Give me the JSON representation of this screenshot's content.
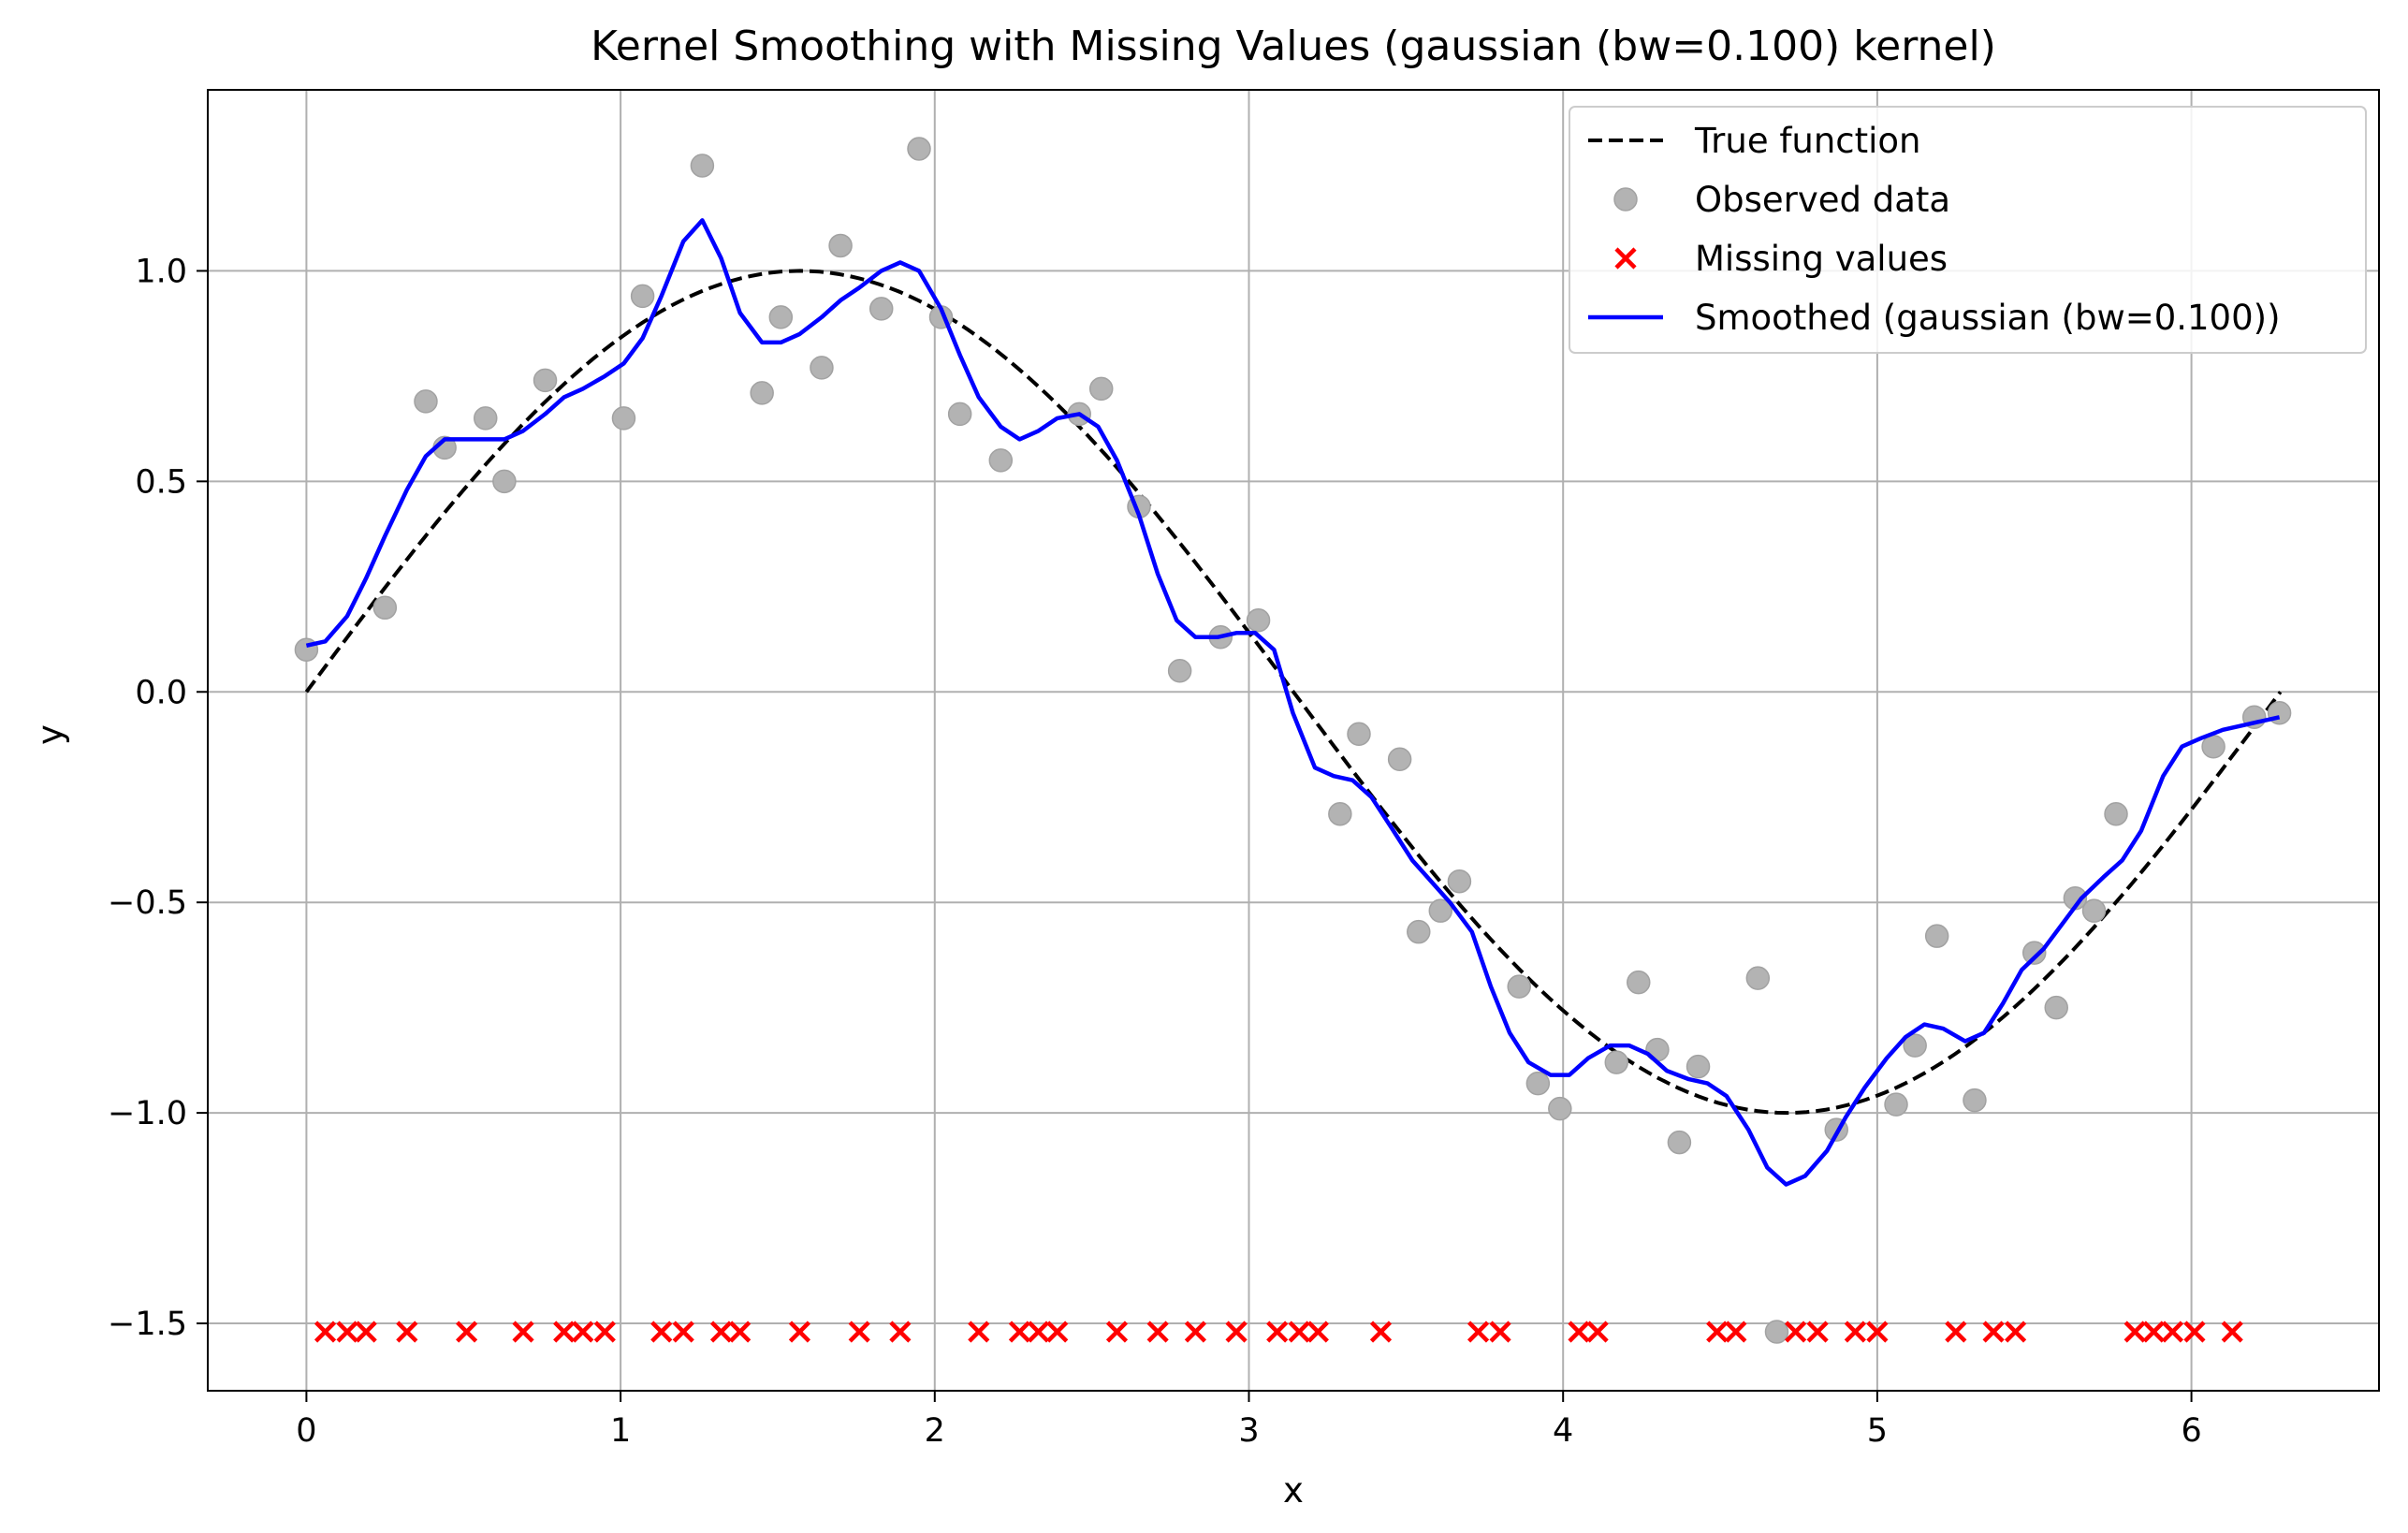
{
  "chart_data": {
    "type": "scatter",
    "title": "Kernel Smoothing with Missing Values (gaussian (bw=0.100) kernel)",
    "xlabel": "x",
    "ylabel": "y",
    "xlim": [
      -0.314,
      6.597
    ],
    "ylim": [
      -1.66,
      1.43
    ],
    "xticks": [
      0,
      1,
      2,
      3,
      4,
      5,
      6
    ],
    "yticks": [
      -1.5,
      -1.0,
      -0.5,
      0.0,
      0.5,
      1.0
    ],
    "xtick_labels": [
      "0",
      "1",
      "2",
      "3",
      "4",
      "5",
      "6"
    ],
    "ytick_labels": [
      "−1.5",
      "−1.0",
      "−0.5",
      "0.0",
      "0.5",
      "1.0"
    ],
    "grid": true,
    "legend_position": "top-right",
    "colors": {
      "true_function": "#000000",
      "observed": "#b3b3b3",
      "missing": "#ff0000",
      "smoothed": "#0000ff"
    },
    "series": [
      {
        "name": "True function",
        "type": "line",
        "style": "dashed",
        "function": "sin",
        "x_range": [
          0,
          6.2832
        ]
      },
      {
        "name": "Observed data",
        "type": "scatter",
        "points": [
          [
            0.0,
            0.1
          ],
          [
            0.25,
            0.2
          ],
          [
            0.38,
            0.69
          ],
          [
            0.44,
            0.58
          ],
          [
            0.57,
            0.65
          ],
          [
            0.63,
            0.5
          ],
          [
            0.76,
            0.74
          ],
          [
            1.01,
            0.65
          ],
          [
            1.07,
            0.94
          ],
          [
            1.26,
            1.25
          ],
          [
            1.45,
            0.71
          ],
          [
            1.51,
            0.89
          ],
          [
            1.64,
            0.77
          ],
          [
            1.7,
            1.06
          ],
          [
            1.83,
            0.91
          ],
          [
            1.95,
            1.29
          ],
          [
            2.02,
            0.89
          ],
          [
            2.08,
            0.66
          ],
          [
            2.21,
            0.55
          ],
          [
            2.46,
            0.66
          ],
          [
            2.53,
            0.72
          ],
          [
            2.65,
            0.44
          ],
          [
            2.78,
            0.05
          ],
          [
            2.91,
            0.13
          ],
          [
            3.03,
            0.17
          ],
          [
            3.29,
            -0.29
          ],
          [
            3.35,
            -0.1
          ],
          [
            3.48,
            -0.16
          ],
          [
            3.54,
            -0.57
          ],
          [
            3.61,
            -0.52
          ],
          [
            3.67,
            -0.45
          ],
          [
            3.86,
            -0.7
          ],
          [
            3.92,
            -0.93
          ],
          [
            3.99,
            -0.99
          ],
          [
            4.17,
            -0.88
          ],
          [
            4.24,
            -0.69
          ],
          [
            4.3,
            -0.85
          ],
          [
            4.37,
            -1.07
          ],
          [
            4.43,
            -0.89
          ],
          [
            4.62,
            -0.68
          ],
          [
            4.68,
            -1.52
          ],
          [
            4.87,
            -1.04
          ],
          [
            5.06,
            -0.98
          ],
          [
            5.12,
            -0.84
          ],
          [
            5.19,
            -0.58
          ],
          [
            5.31,
            -0.97
          ],
          [
            5.5,
            -0.62
          ],
          [
            5.57,
            -0.75
          ],
          [
            5.63,
            -0.49
          ],
          [
            5.69,
            -0.52
          ],
          [
            5.76,
            -0.29
          ],
          [
            6.07,
            -0.13
          ],
          [
            6.2,
            -0.06
          ],
          [
            6.28,
            -0.05
          ]
        ]
      },
      {
        "name": "Missing values",
        "type": "scatter",
        "marker": "x",
        "y": -1.52,
        "x": [
          0.06,
          0.13,
          0.19,
          0.32,
          0.51,
          0.69,
          0.82,
          0.88,
          0.95,
          1.13,
          1.2,
          1.32,
          1.38,
          1.57,
          1.76,
          1.89,
          2.14,
          2.27,
          2.33,
          2.39,
          2.58,
          2.71,
          2.83,
          2.96,
          3.09,
          3.16,
          3.22,
          3.42,
          3.73,
          3.8,
          4.05,
          4.11,
          4.49,
          4.55,
          4.74,
          4.81,
          4.93,
          5.0,
          5.25,
          5.37,
          5.44,
          5.82,
          5.88,
          5.94,
          6.01,
          6.13
        ]
      },
      {
        "name": "Smoothed (gaussian (bw=0.100))",
        "type": "line",
        "points": [
          [
            0.0,
            0.11
          ],
          [
            0.06,
            0.12
          ],
          [
            0.13,
            0.18
          ],
          [
            0.19,
            0.27
          ],
          [
            0.25,
            0.37
          ],
          [
            0.32,
            0.48
          ],
          [
            0.38,
            0.56
          ],
          [
            0.44,
            0.6
          ],
          [
            0.51,
            0.6
          ],
          [
            0.57,
            0.6
          ],
          [
            0.63,
            0.6
          ],
          [
            0.69,
            0.62
          ],
          [
            0.76,
            0.66
          ],
          [
            0.82,
            0.7
          ],
          [
            0.88,
            0.72
          ],
          [
            0.95,
            0.75
          ],
          [
            1.01,
            0.78
          ],
          [
            1.07,
            0.84
          ],
          [
            1.13,
            0.94
          ],
          [
            1.2,
            1.07
          ],
          [
            1.26,
            1.12
          ],
          [
            1.32,
            1.03
          ],
          [
            1.38,
            0.9
          ],
          [
            1.45,
            0.83
          ],
          [
            1.51,
            0.83
          ],
          [
            1.57,
            0.85
          ],
          [
            1.64,
            0.89
          ],
          [
            1.7,
            0.93
          ],
          [
            1.76,
            0.96
          ],
          [
            1.83,
            1.0
          ],
          [
            1.89,
            1.02
          ],
          [
            1.95,
            1.0
          ],
          [
            2.02,
            0.91
          ],
          [
            2.08,
            0.8
          ],
          [
            2.14,
            0.7
          ],
          [
            2.21,
            0.63
          ],
          [
            2.27,
            0.6
          ],
          [
            2.33,
            0.62
          ],
          [
            2.39,
            0.65
          ],
          [
            2.46,
            0.66
          ],
          [
            2.52,
            0.63
          ],
          [
            2.58,
            0.55
          ],
          [
            2.65,
            0.42
          ],
          [
            2.71,
            0.28
          ],
          [
            2.77,
            0.17
          ],
          [
            2.83,
            0.13
          ],
          [
            2.9,
            0.13
          ],
          [
            2.96,
            0.14
          ],
          [
            3.02,
            0.14
          ],
          [
            3.08,
            0.1
          ],
          [
            3.14,
            -0.05
          ],
          [
            3.21,
            -0.18
          ],
          [
            3.27,
            -0.2
          ],
          [
            3.33,
            -0.21
          ],
          [
            3.39,
            -0.25
          ],
          [
            3.46,
            -0.33
          ],
          [
            3.52,
            -0.4
          ],
          [
            3.58,
            -0.45
          ],
          [
            3.64,
            -0.5
          ],
          [
            3.71,
            -0.57
          ],
          [
            3.77,
            -0.7
          ],
          [
            3.83,
            -0.81
          ],
          [
            3.89,
            -0.88
          ],
          [
            3.96,
            -0.91
          ],
          [
            4.02,
            -0.91
          ],
          [
            4.08,
            -0.87
          ],
          [
            4.15,
            -0.84
          ],
          [
            4.21,
            -0.84
          ],
          [
            4.27,
            -0.86
          ],
          [
            4.33,
            -0.9
          ],
          [
            4.4,
            -0.92
          ],
          [
            4.46,
            -0.93
          ],
          [
            4.52,
            -0.96
          ],
          [
            4.59,
            -1.04
          ],
          [
            4.65,
            -1.13
          ],
          [
            4.71,
            -1.17
          ],
          [
            4.77,
            -1.15
          ],
          [
            4.84,
            -1.09
          ],
          [
            4.9,
            -1.01
          ],
          [
            4.96,
            -0.94
          ],
          [
            5.03,
            -0.87
          ],
          [
            5.09,
            -0.82
          ],
          [
            5.15,
            -0.79
          ],
          [
            5.21,
            -0.8
          ],
          [
            5.28,
            -0.83
          ],
          [
            5.34,
            -0.81
          ],
          [
            5.4,
            -0.74
          ],
          [
            5.46,
            -0.66
          ],
          [
            5.53,
            -0.61
          ],
          [
            5.59,
            -0.55
          ],
          [
            5.65,
            -0.49
          ],
          [
            5.72,
            -0.44
          ],
          [
            5.78,
            -0.4
          ],
          [
            5.84,
            -0.33
          ],
          [
            5.91,
            -0.2
          ],
          [
            5.97,
            -0.13
          ],
          [
            6.03,
            -0.11
          ],
          [
            6.1,
            -0.09
          ],
          [
            6.16,
            -0.08
          ],
          [
            6.22,
            -0.07
          ],
          [
            6.28,
            -0.06
          ]
        ]
      }
    ],
    "legend": [
      "True function",
      "Observed data",
      "Missing values",
      "Smoothed (gaussian (bw=0.100))"
    ]
  }
}
